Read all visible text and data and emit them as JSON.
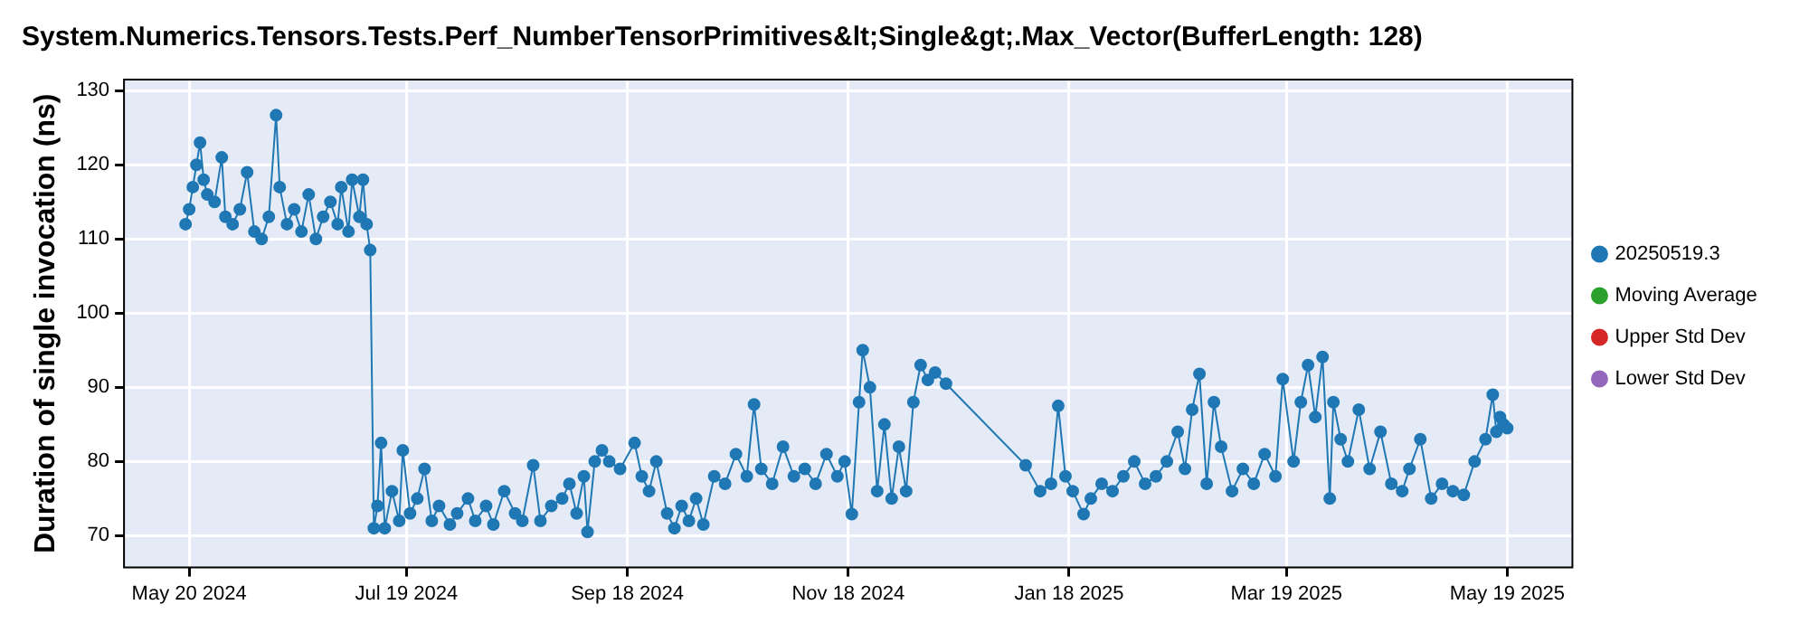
{
  "chart_data": {
    "type": "line",
    "title": "System.Numerics.Tensors.Tests.Perf_NumberTensorPrimitives&lt;Single&gt;.Max_Vector(BufferLength: 128)",
    "ylabel": "Duration of single invocation (ns)",
    "xlim": [
      "2024-05-02",
      "2025-06-06"
    ],
    "xticks": [
      {
        "value": "2024-05-20",
        "label": "May 20 2024"
      },
      {
        "value": "2024-07-19",
        "label": "Jul 19 2024"
      },
      {
        "value": "2024-09-18",
        "label": "Sep 18 2024"
      },
      {
        "value": "2024-11-18",
        "label": "Nov 18 2024"
      },
      {
        "value": "2025-01-18",
        "label": "Jan 18 2025"
      },
      {
        "value": "2025-03-19",
        "label": "Mar 19 2025"
      },
      {
        "value": "2025-05-19",
        "label": "May 19 2025"
      }
    ],
    "ylim": [
      65.7,
      131.5
    ],
    "yticks": [
      70,
      80,
      90,
      100,
      110,
      120,
      130
    ],
    "grid": true,
    "legend": "right",
    "marker": "circle",
    "line_style": "solid",
    "series": [
      {
        "name": "20250519.3",
        "color": "#1f77b4",
        "x": [
          "2024-05-19",
          "2024-05-20",
          "2024-05-21",
          "2024-05-22",
          "2024-05-23",
          "2024-05-24",
          "2024-05-25",
          "2024-05-27",
          "2024-05-29",
          "2024-05-30",
          "2024-06-01",
          "2024-06-03",
          "2024-06-05",
          "2024-06-07",
          "2024-06-09",
          "2024-06-11",
          "2024-06-13",
          "2024-06-14",
          "2024-06-16",
          "2024-06-18",
          "2024-06-20",
          "2024-06-22",
          "2024-06-24",
          "2024-06-26",
          "2024-06-28",
          "2024-06-30",
          "2024-07-01",
          "2024-07-03",
          "2024-07-04",
          "2024-07-06",
          "2024-07-07",
          "2024-07-08",
          "2024-07-09",
          "2024-07-10",
          "2024-07-11",
          "2024-07-12",
          "2024-07-13",
          "2024-07-15",
          "2024-07-17",
          "2024-07-18",
          "2024-07-20",
          "2024-07-22",
          "2024-07-24",
          "2024-07-26",
          "2024-07-28",
          "2024-07-31",
          "2024-08-02",
          "2024-08-05",
          "2024-08-07",
          "2024-08-10",
          "2024-08-12",
          "2024-08-15",
          "2024-08-18",
          "2024-08-20",
          "2024-08-23",
          "2024-08-25",
          "2024-08-28",
          "2024-08-31",
          "2024-09-02",
          "2024-09-04",
          "2024-09-06",
          "2024-09-07",
          "2024-09-09",
          "2024-09-11",
          "2024-09-13",
          "2024-09-16",
          "2024-09-20",
          "2024-09-22",
          "2024-09-24",
          "2024-09-26",
          "2024-09-29",
          "2024-10-01",
          "2024-10-03",
          "2024-10-05",
          "2024-10-07",
          "2024-10-09",
          "2024-10-12",
          "2024-10-15",
          "2024-10-18",
          "2024-10-21",
          "2024-10-23",
          "2024-10-25",
          "2024-10-28",
          "2024-10-31",
          "2024-11-03",
          "2024-11-06",
          "2024-11-09",
          "2024-11-12",
          "2024-11-15",
          "2024-11-17",
          "2024-11-19",
          "2024-11-21",
          "2024-11-22",
          "2024-11-24",
          "2024-11-26",
          "2024-11-28",
          "2024-11-30",
          "2024-12-02",
          "2024-12-04",
          "2024-12-06",
          "2024-12-08",
          "2024-12-10",
          "2024-12-12",
          "2024-12-15",
          "2025-01-06",
          "2025-01-10",
          "2025-01-13",
          "2025-01-15",
          "2025-01-17",
          "2025-01-19",
          "2025-01-22",
          "2025-01-24",
          "2025-01-27",
          "2025-01-30",
          "2025-02-02",
          "2025-02-05",
          "2025-02-08",
          "2025-02-11",
          "2025-02-14",
          "2025-02-17",
          "2025-02-19",
          "2025-02-21",
          "2025-02-23",
          "2025-02-25",
          "2025-02-27",
          "2025-03-01",
          "2025-03-04",
          "2025-03-07",
          "2025-03-10",
          "2025-03-13",
          "2025-03-16",
          "2025-03-18",
          "2025-03-21",
          "2025-03-23",
          "2025-03-25",
          "2025-03-27",
          "2025-03-29",
          "2025-03-31",
          "2025-04-01",
          "2025-04-03",
          "2025-04-05",
          "2025-04-08",
          "2025-04-11",
          "2025-04-14",
          "2025-04-17",
          "2025-04-20",
          "2025-04-22",
          "2025-04-25",
          "2025-04-28",
          "2025-05-01",
          "2025-05-04",
          "2025-05-07",
          "2025-05-10",
          "2025-05-13",
          "2025-05-15",
          "2025-05-16",
          "2025-05-17",
          "2025-05-18",
          "2025-05-19"
        ],
        "values": [
          112,
          114,
          117,
          120,
          123,
          118,
          116,
          115,
          121,
          113,
          112,
          114,
          119,
          111,
          110,
          113,
          126.7,
          117,
          112,
          114,
          111,
          116,
          110,
          113,
          115,
          112,
          117,
          111,
          118,
          113,
          118,
          112,
          108.5,
          71,
          74,
          82.5,
          71,
          76,
          72,
          81.5,
          73,
          75,
          79,
          72,
          74,
          71.5,
          73,
          75,
          72,
          74,
          71.5,
          76,
          73,
          72,
          79.5,
          72,
          74,
          75,
          77,
          73,
          78,
          70.5,
          80,
          81.5,
          80,
          79,
          82.5,
          78,
          76,
          80,
          73,
          71,
          74,
          72,
          75,
          71.5,
          78,
          77,
          81,
          78,
          87.7,
          79,
          77,
          82,
          78,
          79,
          77,
          81,
          78,
          80,
          72.9,
          88,
          95,
          90,
          76,
          85,
          75,
          82,
          76,
          88,
          93,
          91,
          92,
          90.5,
          79.5,
          76,
          77,
          87.5,
          78,
          76,
          72.9,
          75,
          77,
          76,
          78,
          80,
          77,
          78,
          80,
          84,
          79,
          87,
          91.8,
          77,
          88,
          82,
          76,
          79,
          77,
          81,
          78,
          91.1,
          80,
          88,
          93,
          86,
          94.1,
          75,
          88,
          83,
          80,
          87,
          79,
          84,
          77,
          76,
          79,
          83,
          75,
          77,
          76,
          75.5,
          80,
          83,
          89,
          84,
          86,
          85,
          84.5
        ]
      },
      {
        "name": "Moving Average",
        "color": "#2ca02c"
      },
      {
        "name": "Upper Std Dev",
        "color": "#d62728"
      },
      {
        "name": "Lower Std Dev",
        "color": "#9467bd"
      }
    ]
  }
}
